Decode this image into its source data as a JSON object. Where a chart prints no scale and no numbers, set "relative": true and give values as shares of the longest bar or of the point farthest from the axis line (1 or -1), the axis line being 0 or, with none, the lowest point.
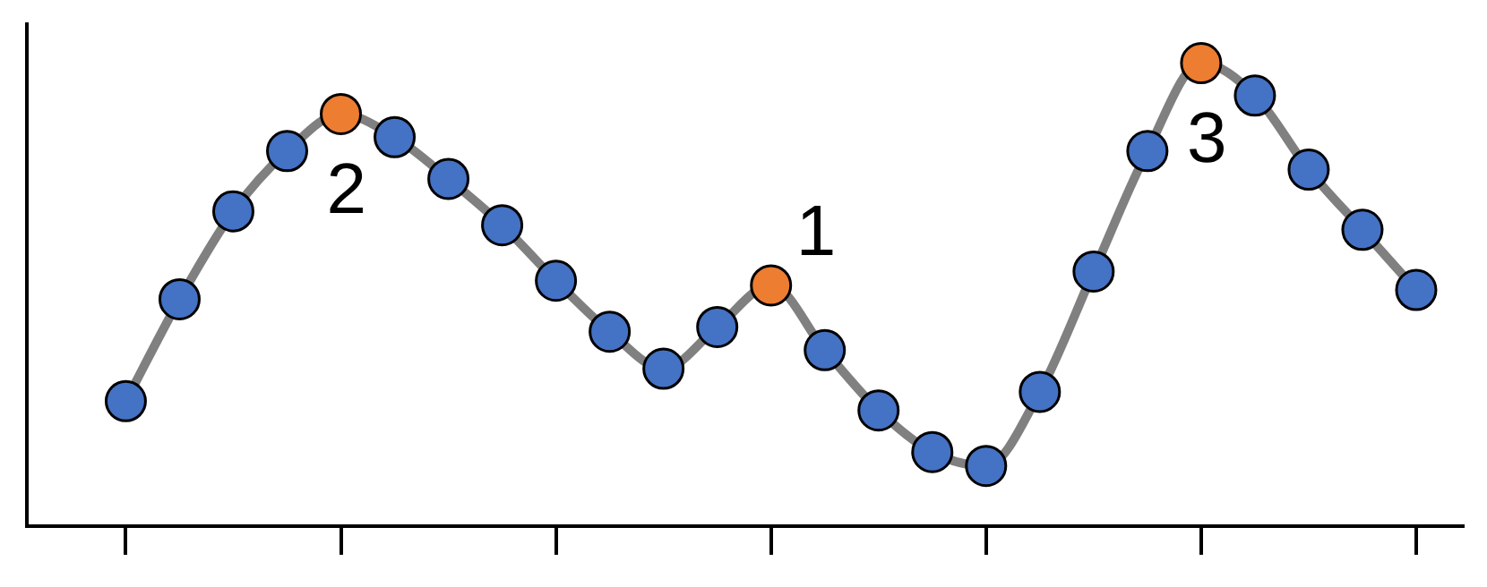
{
  "chart_data": {
    "type": "line",
    "relative": true,
    "categories": [
      null,
      null,
      null,
      null,
      null,
      null,
      null,
      null,
      null,
      null,
      null,
      null,
      null,
      null,
      null,
      null,
      null,
      null,
      null,
      null,
      null,
      null,
      null,
      null,
      null
    ],
    "series": [
      {
        "color": "#808080",
        "colors": [
          "#4472c4",
          "#4472c4",
          "#4472c4",
          "#4472c4",
          "#ed7d31",
          "#4472c4",
          "#4472c4",
          "#4472c4",
          "#4472c4",
          "#4472c4",
          "#4472c4",
          "#4472c4",
          "#ed7d31",
          "#4472c4",
          "#4472c4",
          "#4472c4",
          "#4472c4",
          "#4472c4",
          "#4472c4",
          "#4472c4",
          "#ed7d31",
          "#4472c4",
          "#4472c4",
          "#4472c4",
          "#4472c4"
        ],
        "values": [
          0.27,
          0.49,
          0.68,
          0.81,
          0.89,
          0.84,
          0.75,
          0.65,
          0.53,
          0.42,
          0.34,
          0.43,
          0.52,
          0.38,
          0.25,
          0.16,
          0.13,
          0.29,
          0.55,
          0.81,
          1,
          0.93,
          0.77,
          0.64,
          0.51
        ]
      }
    ],
    "marker": "circle",
    "line_style": "solid",
    "legend": false,
    "annotations": [
      "2",
      "1",
      "3"
    ]
  }
}
